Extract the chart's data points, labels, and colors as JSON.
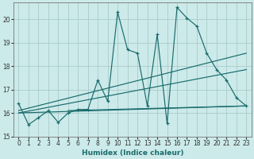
{
  "xlabel": "Humidex (Indice chaleur)",
  "xlim": [
    -0.5,
    23.5
  ],
  "ylim": [
    15,
    20.7
  ],
  "yticks": [
    15,
    16,
    17,
    18,
    19,
    20
  ],
  "xticks": [
    0,
    1,
    2,
    3,
    4,
    5,
    6,
    7,
    8,
    9,
    10,
    11,
    12,
    13,
    14,
    15,
    16,
    17,
    18,
    19,
    20,
    21,
    22,
    23
  ],
  "bg_color": "#cceaea",
  "line_color": "#1a6b6b",
  "grid_color": "#aacaca",
  "main_series": {
    "x": [
      0,
      1,
      2,
      3,
      4,
      5,
      6,
      7,
      8,
      9,
      10,
      11,
      12,
      13,
      14,
      15,
      16,
      17,
      18,
      19,
      20,
      21,
      22,
      23
    ],
    "y": [
      16.4,
      15.5,
      15.8,
      16.1,
      15.6,
      16.0,
      16.15,
      16.15,
      17.4,
      16.5,
      20.3,
      18.7,
      18.55,
      16.3,
      19.35,
      15.55,
      20.5,
      20.05,
      19.7,
      18.55,
      17.85,
      17.4,
      16.65,
      16.3
    ]
  },
  "trend_lines": [
    {
      "x": [
        0,
        23
      ],
      "y": [
        16.0,
        16.3
      ]
    },
    {
      "x": [
        0,
        23
      ],
      "y": [
        16.0,
        17.85
      ]
    },
    {
      "x": [
        0,
        23
      ],
      "y": [
        16.1,
        18.55
      ]
    },
    {
      "x": [
        5,
        23
      ],
      "y": [
        16.1,
        16.3
      ]
    }
  ]
}
